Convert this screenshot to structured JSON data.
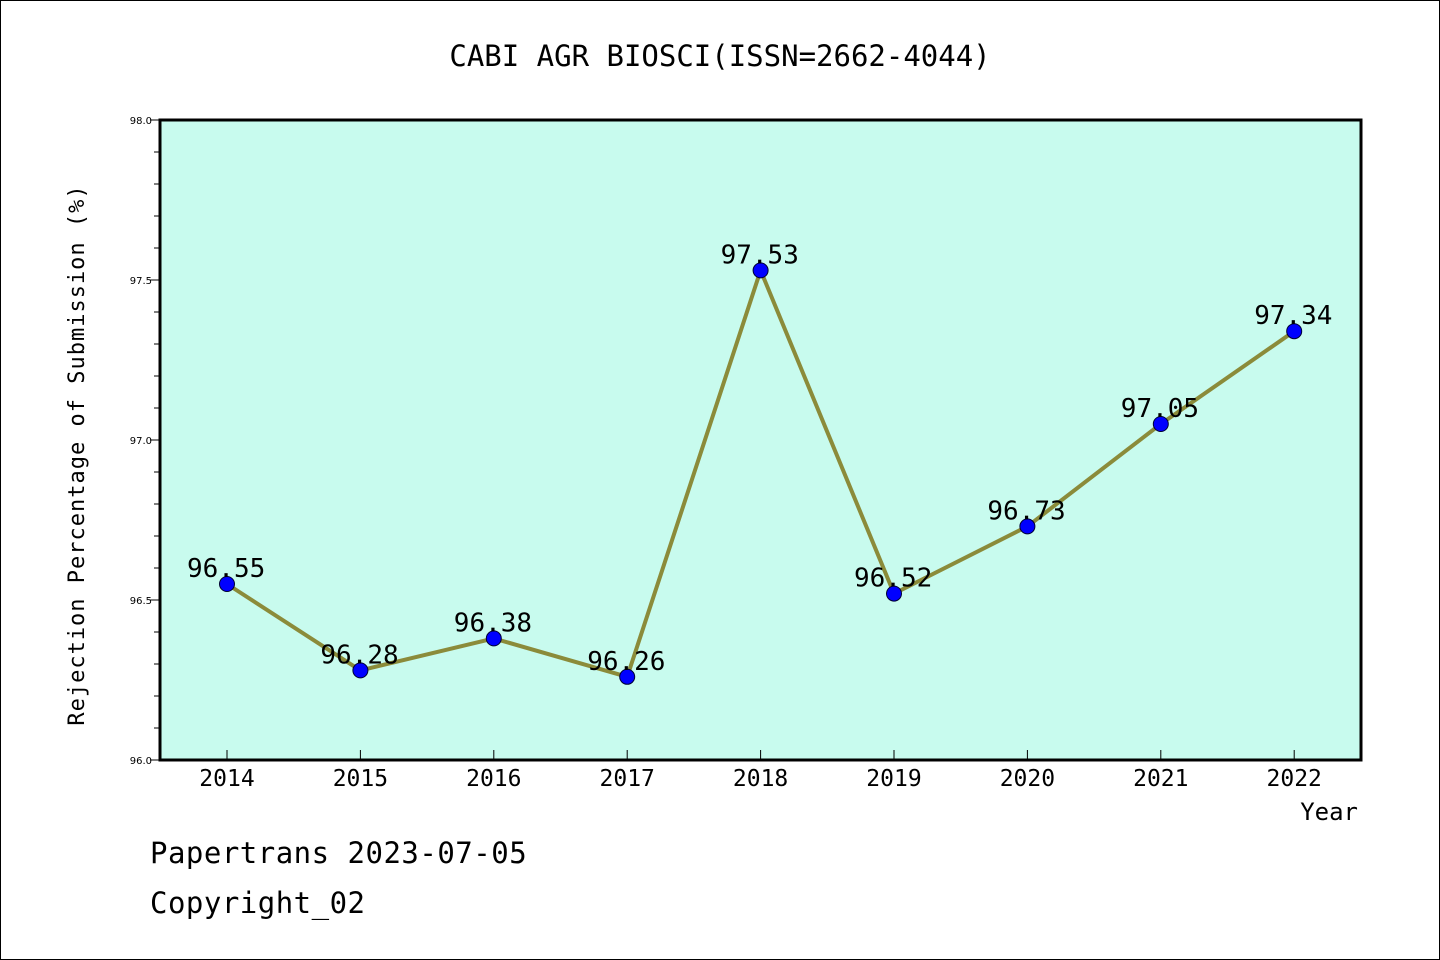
{
  "chart_data": {
    "type": "line",
    "title": "CABI AGR BIOSCI(ISSN=2662-4044)",
    "xlabel": "Year",
    "ylabel": "Rejection Percentage of Submission (%)",
    "categories": [
      "2014",
      "2015",
      "2016",
      "2017",
      "2018",
      "2019",
      "2020",
      "2021",
      "2022"
    ],
    "values": [
      96.55,
      96.28,
      96.38,
      96.26,
      97.53,
      96.52,
      96.73,
      97.05,
      97.34
    ],
    "data_labels": [
      "96.55",
      "96.28",
      "96.38",
      "96.26",
      "97.53",
      "96.52",
      "96.73",
      "97.05",
      "97.34"
    ],
    "ylim": [
      96.0,
      98.0
    ],
    "yticks": [
      "96.0",
      "96.5",
      "97.0",
      "97.5",
      "98.0"
    ],
    "grid": false,
    "colors": {
      "plot_background": "#c8fbee",
      "line": "#8b8b3a",
      "marker": "#0000ff"
    }
  },
  "footer": {
    "line1": "Papertrans 2023-07-05",
    "line2": "Copyright_02"
  }
}
